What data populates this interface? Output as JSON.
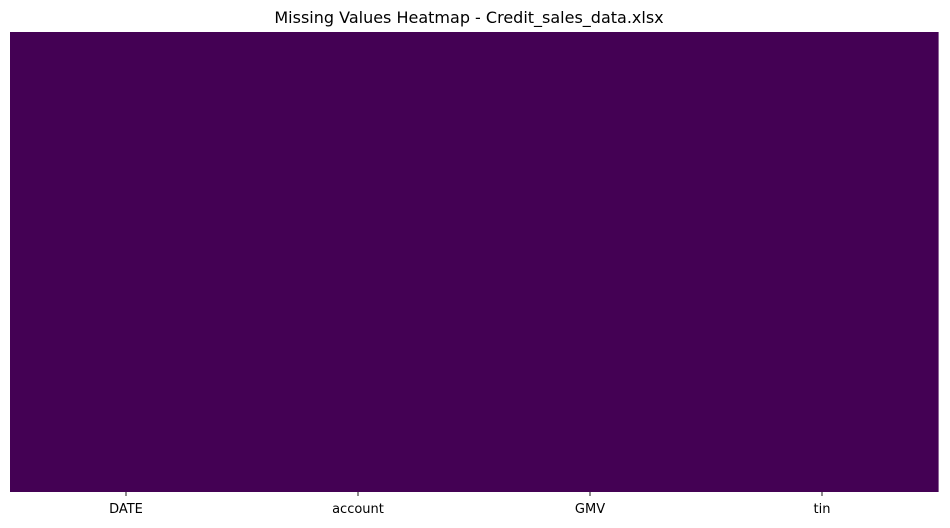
{
  "chart_data": {
    "type": "heatmap",
    "title": "Missing Values Heatmap - Credit_sales_data.xlsx",
    "xlabel": "",
    "ylabel": "",
    "columns": [
      "DATE",
      "account",
      "GMV",
      "tin"
    ],
    "missing_fraction": [
      0,
      0,
      0,
      0
    ],
    "colorbar": false,
    "colormap": "viridis",
    "colors": {
      "present": "#440154",
      "missing": "#fde725"
    }
  }
}
